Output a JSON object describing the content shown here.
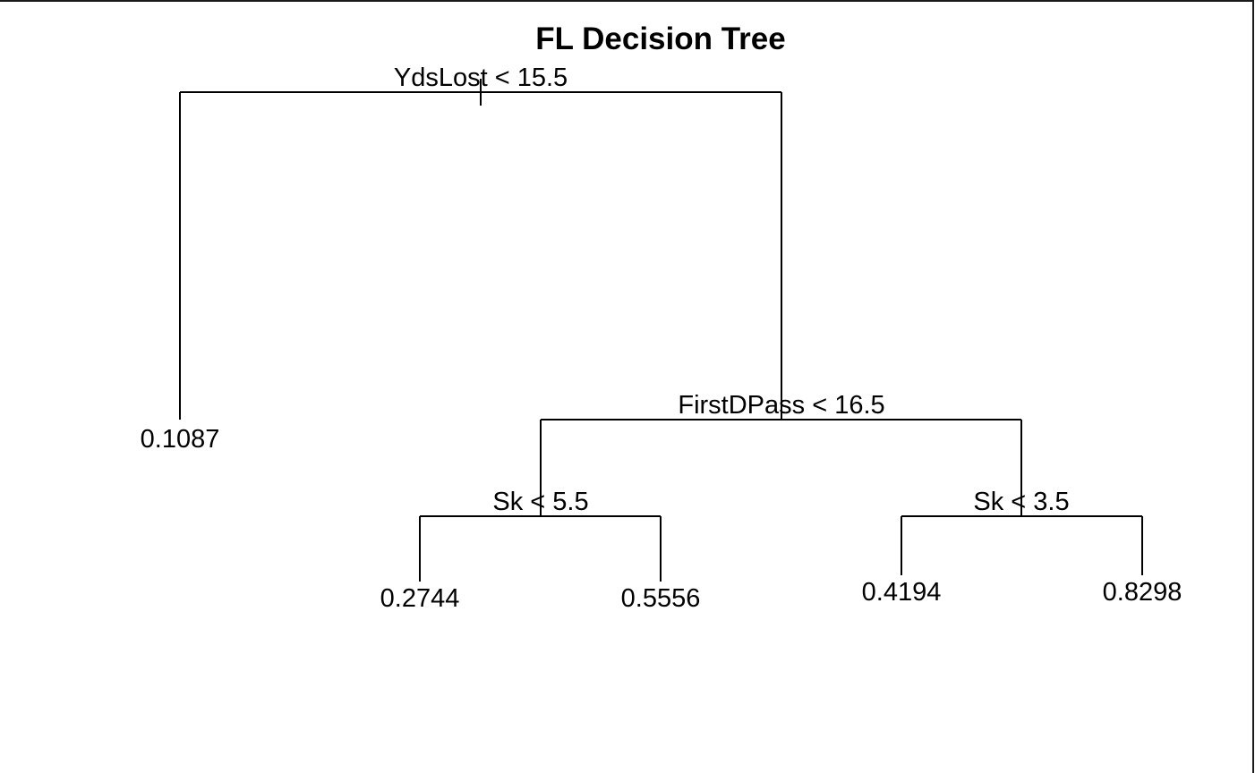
{
  "diagram": {
    "title": "FL Decision Tree",
    "type": "decision-tree",
    "border_color": "#1a1a1a",
    "line_color": "#000000",
    "splits": {
      "root": "YdsLost < 15.5",
      "right": "FirstDPass < 16.5",
      "right_left": "Sk < 5.5",
      "right_right": "Sk < 3.5"
    },
    "leaves": {
      "l": "0.1087",
      "rll": "0.2744",
      "rlr": "0.5556",
      "rrl": "0.4194",
      "rrr": "0.8298"
    }
  }
}
